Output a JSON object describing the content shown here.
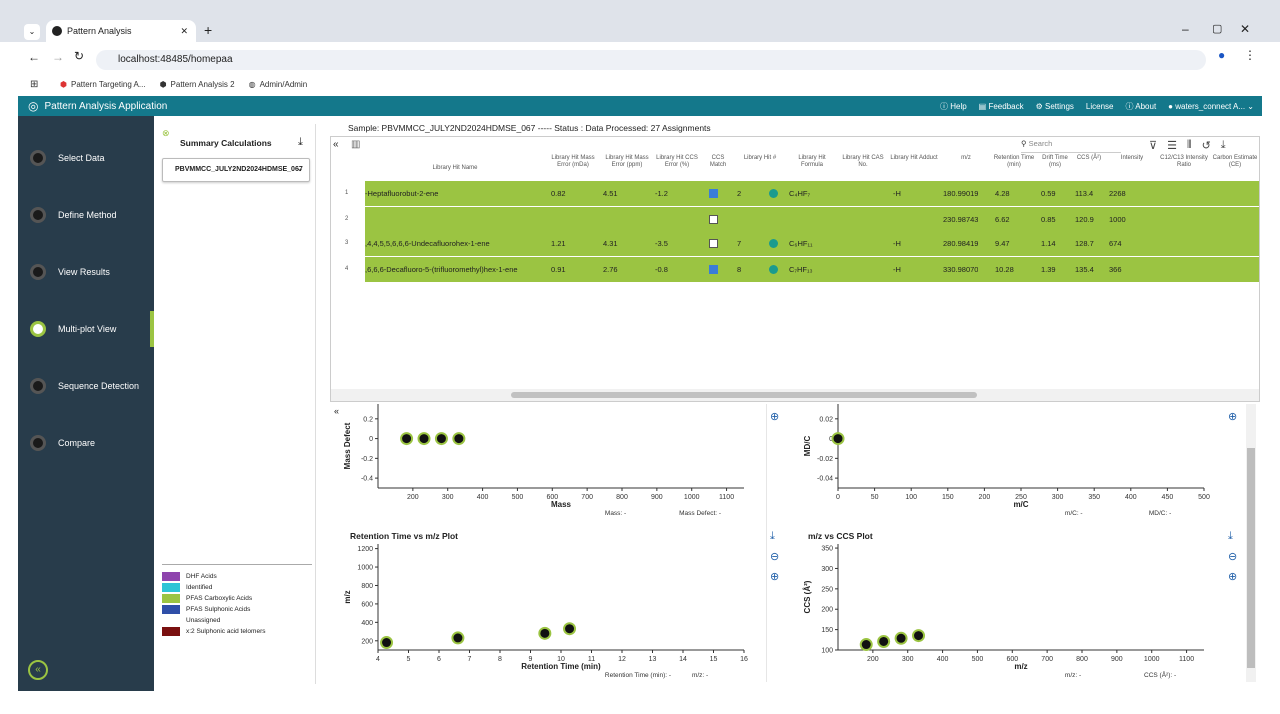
{
  "browser": {
    "tab_title": "Pattern Analysis",
    "url": "localhost:48485/homepaa",
    "bookmarks": [
      "Pattern Targeting A...",
      "Pattern Analysis 2",
      "Admin/Admin"
    ]
  },
  "header": {
    "app_title": "Pattern Analysis Application",
    "help": "Help",
    "feedback": "Feedback",
    "settings": "Settings",
    "license": "License",
    "about": "About",
    "user": "waters_connect A..."
  },
  "nav": {
    "items": [
      "Select Data",
      "Define Method",
      "View Results",
      "Multi-plot View",
      "Sequence Detection",
      "Compare"
    ],
    "active_index": 3
  },
  "summary": {
    "title": "Summary Calculations",
    "dropdown": "PBVMMCC_JULY2ND2024HDMSE_067",
    "legend": [
      {
        "label": "DHF Acids",
        "color": "#8e44ad"
      },
      {
        "label": "Identified",
        "color": "#2ec4d6"
      },
      {
        "label": "PFAS Carboxylic Acids",
        "color": "#9bc442"
      },
      {
        "label": "PFAS Sulphonic Acids",
        "color": "#2f4fa8"
      },
      {
        "label": "Unassigned",
        "color": "#ffffff"
      },
      {
        "label": "x:2 Sulphonic acid telomers",
        "color": "#7a1010"
      }
    ]
  },
  "grid": {
    "status_line": "Sample: PBVMMCC_JULY2ND2024HDMSE_067 ----- Status : Data Processed: 27 Assignments",
    "search_placeholder": "Search",
    "headers": [
      "Library Hit Name",
      "Library Hit Mass Error (mDa)",
      "Library Hit Mass Error (ppm)",
      "Library Hit CCS Error (%)",
      "CCS Match",
      "Library Hit #",
      "Library Hit Formula",
      "Library Hit CAS No.",
      "Library Hit Adduct",
      "m/z",
      "Retention Time (min)",
      "Drift Time (ms)",
      "CCS (Å²)",
      "Intensity",
      "C12/C13 Intensity Ratio",
      "Carbon Estimate (CE)"
    ],
    "rows": [
      {
        "n": "1",
        "name": "-Heptafluorobut-2-ene",
        "me": "0.82",
        "ppm": "4.51",
        "ccs_err": "-1.2",
        "match": true,
        "hit": "2",
        "formula": "C₄HF₇",
        "adduct": "-H",
        "mz": "180.99019",
        "rt": "4.28",
        "dt": "0.59",
        "ccs": "113.4",
        "int": "2268",
        "color": "green"
      },
      {
        "n": "2",
        "name": "",
        "me": "",
        "ppm": "",
        "ccs_err": "",
        "match": false,
        "hit": "",
        "formula": "",
        "adduct": "",
        "mz": "230.98743",
        "rt": "6.62",
        "dt": "0.85",
        "ccs": "120.9",
        "int": "1000",
        "color": "green"
      },
      {
        "n": "3",
        "name": ",4,4,5,5,6,6,6-Undecafluorohex-1-ene",
        "me": "1.21",
        "ppm": "4.31",
        "ccs_err": "-3.5",
        "match": false,
        "hit": "7",
        "formula": "C₆HF₁₁",
        "adduct": "-H",
        "mz": "280.98419",
        "rt": "9.47",
        "dt": "1.14",
        "ccs": "128.7",
        "int": "674",
        "color": "green"
      },
      {
        "n": "4",
        "name": ",6,6,6-Decafluoro-5-(trifluoromethyl)hex-1-ene",
        "me": "0.91",
        "ppm": "2.76",
        "ccs_err": "-0.8",
        "match": true,
        "hit": "8",
        "formula": "C₇HF₁₃",
        "adduct": "-H",
        "mz": "330.98070",
        "rt": "10.28",
        "dt": "1.39",
        "ccs": "135.4",
        "int": "366",
        "color": "green"
      }
    ]
  },
  "plots": {
    "p1": {
      "ylabel": "Mass Defect",
      "xlabel": "Mass",
      "readout1": "Mass: -",
      "readout2": "Mass Defect: -"
    },
    "p2": {
      "ylabel": "MD/C",
      "xlabel": "m/C",
      "readout1": "m/C: -",
      "readout2": "MD/C: -"
    },
    "p3": {
      "title": "Retention Time vs m/z Plot",
      "ylabel": "m/z",
      "xlabel": "Retention Time (min)",
      "readout1": "Retention Time (min): -",
      "readout2": "m/z: -"
    },
    "p4": {
      "title": "m/z vs CCS Plot",
      "ylabel": "CCS (Å²)",
      "xlabel": "m/z",
      "readout1": "m/z: -",
      "readout2": "CCS (Å²): -"
    }
  },
  "chart_data": [
    {
      "type": "scatter",
      "xlabel": "Mass",
      "ylabel": "Mass Defect",
      "xlim": [
        100,
        1150
      ],
      "ylim": [
        -0.5,
        0.35
      ],
      "x": [
        182,
        232,
        282,
        332
      ],
      "y": [
        0,
        0,
        0,
        0
      ]
    },
    {
      "type": "scatter",
      "xlabel": "m/C",
      "ylabel": "MD/C",
      "xlim": [
        0,
        500
      ],
      "ylim": [
        -0.05,
        0.035
      ],
      "x": [
        0
      ],
      "y": [
        0
      ]
    },
    {
      "type": "scatter",
      "title": "Retention Time vs m/z Plot",
      "xlabel": "Retention Time (min)",
      "ylabel": "m/z",
      "xlim": [
        4,
        16
      ],
      "ylim": [
        100,
        1250
      ],
      "x": [
        4.28,
        6.62,
        9.47,
        10.28
      ],
      "y": [
        181,
        231,
        281,
        331
      ]
    },
    {
      "type": "scatter",
      "title": "m/z vs CCS Plot",
      "xlabel": "m/z",
      "ylabel": "CCS (Å²)",
      "xlim": [
        100,
        1150
      ],
      "ylim": [
        100,
        360
      ],
      "x": [
        181,
        231,
        281,
        331
      ],
      "y": [
        113.4,
        120.9,
        128.7,
        135.4
      ]
    }
  ]
}
